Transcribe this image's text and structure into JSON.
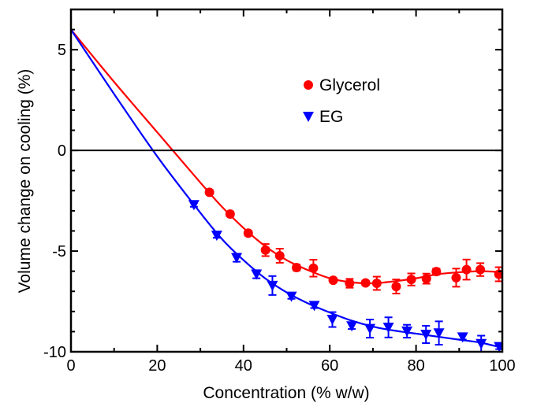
{
  "chart_data": {
    "type": "scatter",
    "title": "",
    "xlabel": "Concentration (% w/w)",
    "ylabel": "Volume change on cooling (%)",
    "xlim": [
      0,
      100
    ],
    "ylim": [
      -10,
      7
    ],
    "xticks": [
      0,
      20,
      40,
      60,
      80,
      100
    ],
    "yticks": [
      5,
      0,
      -5,
      -10
    ],
    "xtick_labels": [
      "0",
      "20",
      "40",
      "60",
      "80",
      "100"
    ],
    "ytick_labels": [
      "5",
      "0",
      "-5",
      "-10"
    ],
    "reference_line_y": 0,
    "grid": false,
    "legend_position": "upper-center",
    "series": [
      {
        "name": "Glycerol",
        "color": "#ff0000",
        "marker": "circle",
        "points": [
          [
            32.1,
            -2.08,
            0.1
          ],
          [
            36.9,
            -3.16,
            0.12
          ],
          [
            41.1,
            -4.11,
            0.12
          ],
          [
            45.1,
            -4.95,
            0.3
          ],
          [
            48.4,
            -5.23,
            0.35
          ],
          [
            52.3,
            -5.82,
            0.15
          ],
          [
            56.2,
            -5.85,
            0.42
          ],
          [
            60.8,
            -6.45,
            0.1
          ],
          [
            64.6,
            -6.6,
            0.22
          ],
          [
            68.3,
            -6.58,
            0.1
          ],
          [
            70.9,
            -6.6,
            0.33
          ],
          [
            75.4,
            -6.76,
            0.35
          ],
          [
            78.9,
            -6.41,
            0.3
          ],
          [
            82.4,
            -6.37,
            0.25
          ],
          [
            84.7,
            -6.02,
            0.15
          ],
          [
            89.3,
            -6.32,
            0.45
          ],
          [
            91.7,
            -5.92,
            0.5
          ],
          [
            94.9,
            -5.92,
            0.32
          ],
          [
            99.2,
            -6.15,
            0.35
          ]
        ],
        "fit": [
          [
            0,
            6
          ],
          [
            10,
            3.4
          ],
          [
            20,
            0.9
          ],
          [
            30,
            -1.6
          ],
          [
            35,
            -2.8
          ],
          [
            40,
            -3.85
          ],
          [
            45,
            -4.75
          ],
          [
            50,
            -5.45
          ],
          [
            55,
            -5.95
          ],
          [
            60,
            -6.35
          ],
          [
            65,
            -6.55
          ],
          [
            70,
            -6.6
          ],
          [
            75,
            -6.5
          ],
          [
            80,
            -6.35
          ],
          [
            85,
            -6.15
          ],
          [
            90,
            -6.05
          ],
          [
            95,
            -6.0
          ],
          [
            100,
            -6.05
          ]
        ]
      },
      {
        "name": "EG",
        "color": "#0000ff",
        "marker": "triangle-down",
        "points": [
          [
            28.5,
            -2.7,
            0.1
          ],
          [
            33.8,
            -4.22,
            0.12
          ],
          [
            38.4,
            -5.33,
            0.2
          ],
          [
            43.0,
            -6.15,
            0.2
          ],
          [
            46.7,
            -6.71,
            0.47
          ],
          [
            51.1,
            -7.25,
            0.12
          ],
          [
            56.4,
            -7.71,
            0.12
          ],
          [
            60.6,
            -8.4,
            0.37
          ],
          [
            65.1,
            -8.72,
            0.15
          ],
          [
            69.3,
            -8.85,
            0.45
          ],
          [
            73.6,
            -8.79,
            0.5
          ],
          [
            77.9,
            -8.98,
            0.32
          ],
          [
            82.3,
            -9.14,
            0.43
          ],
          [
            85.3,
            -9.07,
            0.58
          ],
          [
            90.8,
            -9.27,
            0.12
          ],
          [
            95.1,
            -9.6,
            0.4
          ],
          [
            99.3,
            -9.75,
            0.12
          ]
        ],
        "fit": [
          [
            0,
            6
          ],
          [
            10,
            2.8
          ],
          [
            20,
            -0.3
          ],
          [
            30,
            -3.1
          ],
          [
            35,
            -4.4
          ],
          [
            40,
            -5.45
          ],
          [
            45,
            -6.35
          ],
          [
            50,
            -7.05
          ],
          [
            55,
            -7.6
          ],
          [
            60,
            -8.05
          ],
          [
            65,
            -8.45
          ],
          [
            70,
            -8.75
          ],
          [
            75,
            -8.95
          ],
          [
            80,
            -9.1
          ],
          [
            85,
            -9.25
          ],
          [
            90,
            -9.4
          ],
          [
            95,
            -9.55
          ],
          [
            100,
            -9.8
          ]
        ]
      }
    ]
  }
}
